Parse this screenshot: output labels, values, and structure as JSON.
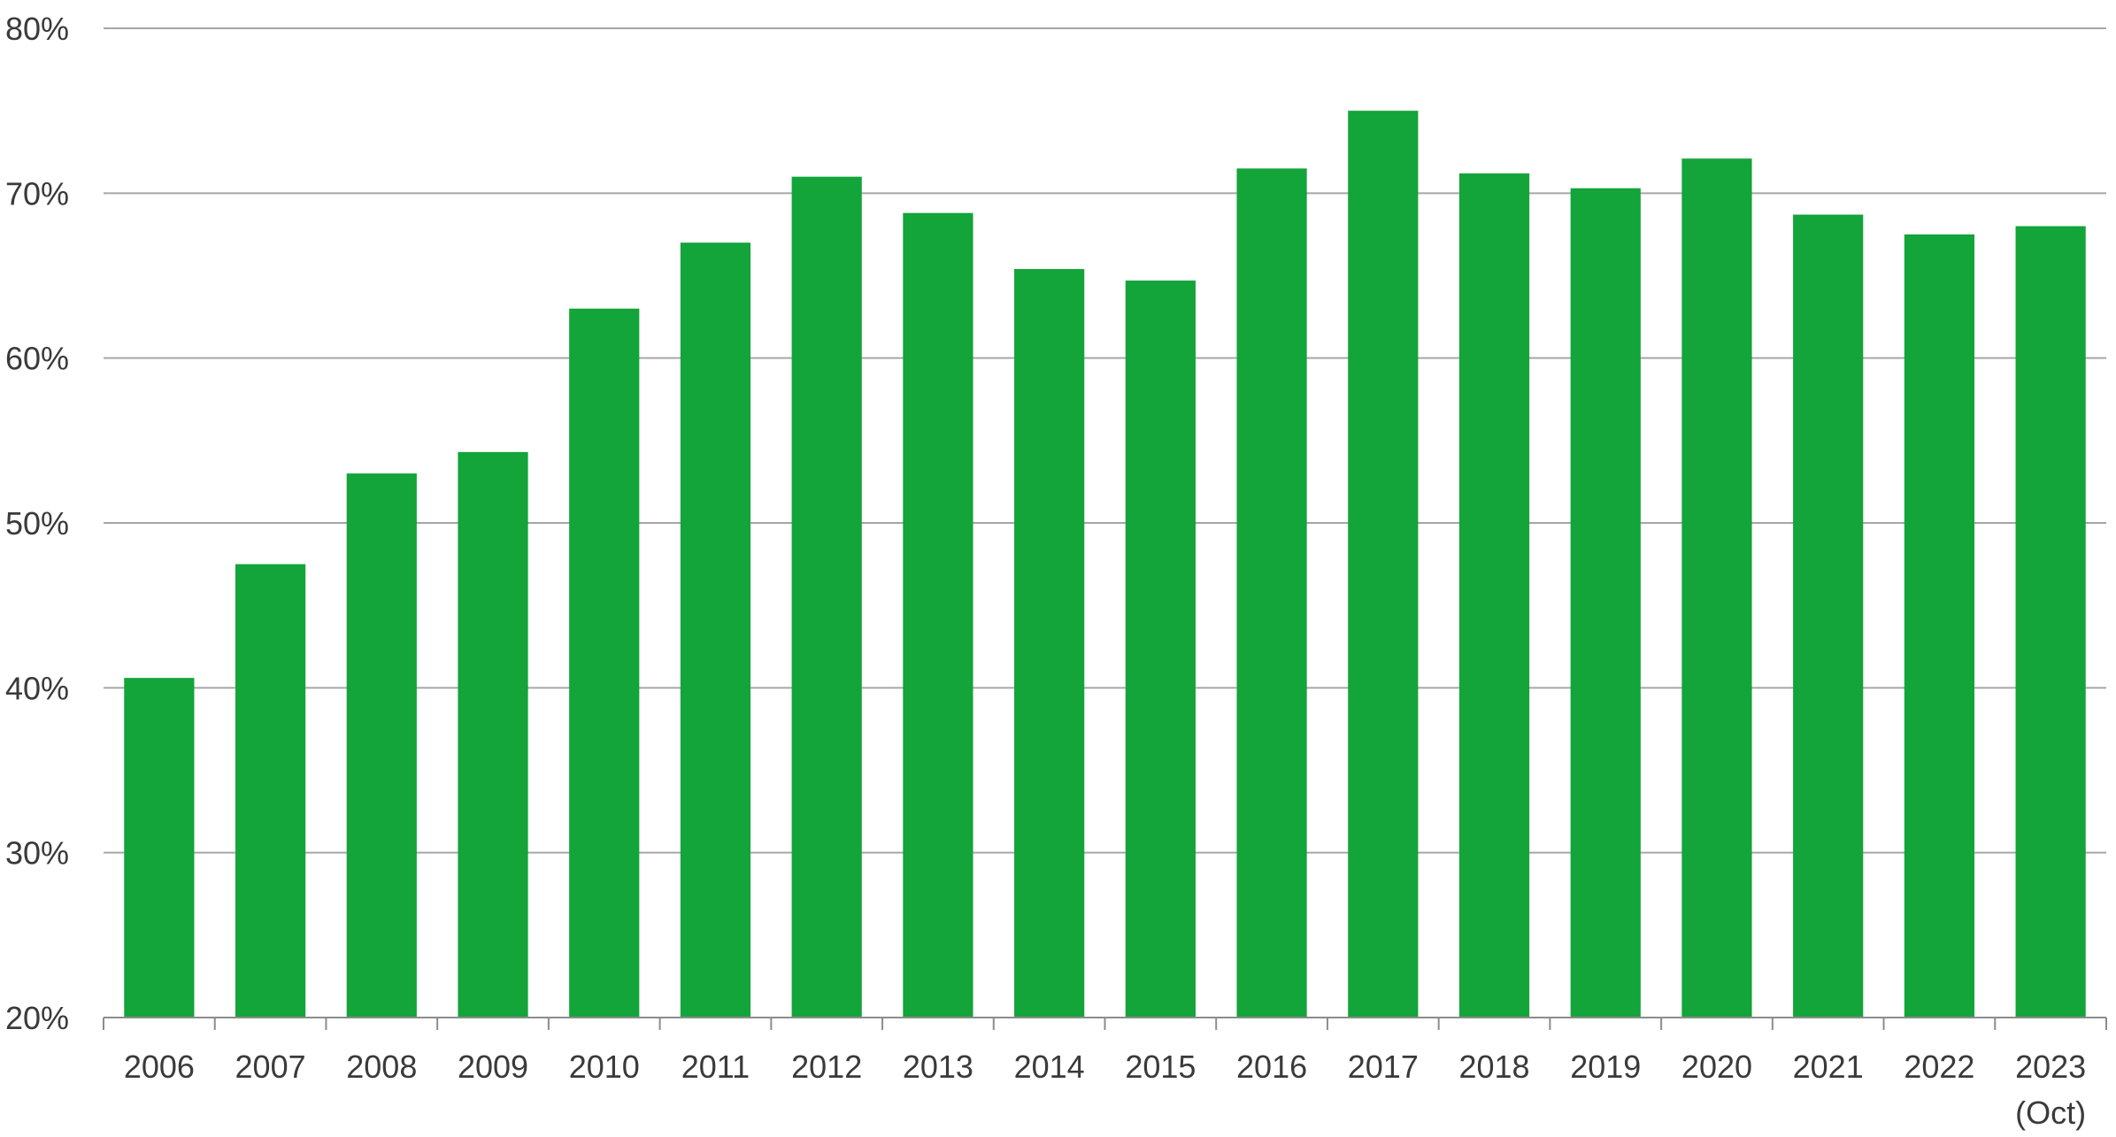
{
  "chart_data": {
    "type": "bar",
    "categories": [
      "2006",
      "2007",
      "2008",
      "2009",
      "2010",
      "2011",
      "2012",
      "2013",
      "2014",
      "2015",
      "2016",
      "2017",
      "2018",
      "2019",
      "2020",
      "2021",
      "2022",
      "2023"
    ],
    "category_sublabels": [
      "",
      "",
      "",
      "",
      "",
      "",
      "",
      "",
      "",
      "",
      "",
      "",
      "",
      "",
      "",
      "",
      "",
      "(Oct)"
    ],
    "series": [
      {
        "values": [
          40.6,
          47.5,
          53.0,
          54.3,
          63.0,
          67.0,
          71.0,
          68.8,
          65.4,
          64.7,
          71.5,
          75.0,
          71.2,
          70.3,
          72.1,
          68.7,
          67.5,
          68.0
        ],
        "color": "#13a43a"
      }
    ],
    "ylim": [
      20,
      80
    ],
    "y_ticks": [
      20,
      30,
      40,
      50,
      60,
      70,
      80
    ],
    "y_tick_labels": [
      "20%",
      "30%",
      "40%",
      "50%",
      "60%",
      "70%",
      "80%"
    ],
    "title": "",
    "xlabel": "",
    "ylabel": "",
    "grid": true,
    "legend": "none",
    "colors": {
      "bar": "#13a43a",
      "grid": "#a6a6a6",
      "axis": "#8c8c8c",
      "text": "#3a3a3a"
    }
  }
}
